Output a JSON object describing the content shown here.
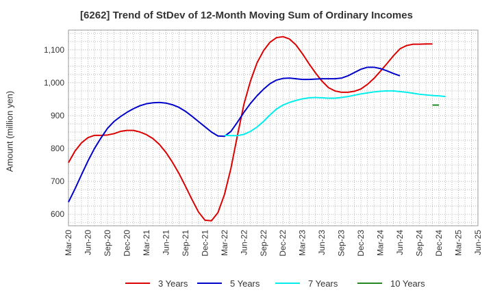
{
  "chart_data": {
    "type": "line",
    "title": "[6262]  Trend of StDev of 12-Month Moving Sum of Ordinary Incomes",
    "xlabel": "",
    "ylabel": "Amount (million yen)",
    "ylim": [
      565,
      1160
    ],
    "y_ticks": [
      600,
      700,
      800,
      900,
      1000,
      1100
    ],
    "y_tick_labels": [
      "600",
      "700",
      "800",
      "900",
      "1,000",
      "1,100"
    ],
    "x_tick_labels": [
      "Mar-20",
      "Jun-20",
      "Sep-20",
      "Dec-20",
      "Mar-21",
      "Jun-21",
      "Sep-21",
      "Dec-21",
      "Mar-22",
      "Jun-22",
      "Sep-22",
      "Dec-22",
      "Mar-23",
      "Jun-23",
      "Sep-23",
      "Dec-23",
      "Mar-24",
      "Jun-24",
      "Sep-24",
      "Dec-24",
      "Mar-25",
      "Jun-25"
    ],
    "grid": true,
    "series": [
      {
        "name": "3 Years",
        "color": "#dd0000",
        "start_index": 0,
        "values": [
          757,
          792,
          817,
          833,
          840,
          840,
          841,
          845,
          852,
          855,
          855,
          850,
          842,
          830,
          812,
          788,
          758,
          724,
          685,
          645,
          607,
          582,
          580,
          605,
          660,
          740,
          840,
          935,
          1005,
          1060,
          1097,
          1123,
          1137,
          1140,
          1133,
          1115,
          1088,
          1058,
          1030,
          1005,
          985,
          975,
          971,
          971,
          974,
          981,
          995,
          1013,
          1035,
          1058,
          1082,
          1103,
          1113,
          1117,
          1117,
          1118,
          1118
        ]
      },
      {
        "name": "5 Years",
        "color": "#0000cc",
        "start_index": 0,
        "values": [
          637,
          677,
          720,
          762,
          800,
          832,
          861,
          882,
          897,
          910,
          921,
          930,
          936,
          939,
          940,
          938,
          933,
          925,
          913,
          898,
          882,
          866,
          850,
          838,
          837,
          852,
          880,
          910,
          937,
          960,
          980,
          997,
          1008,
          1013,
          1014,
          1012,
          1010,
          1010,
          1011,
          1012,
          1012,
          1012,
          1014,
          1021,
          1031,
          1041,
          1047,
          1047,
          1043,
          1036,
          1028,
          1021
        ]
      },
      {
        "name": "7 Years",
        "color": "#00eeee",
        "start_index": 24,
        "values": [
          840,
          839,
          839,
          843,
          852,
          865,
          882,
          902,
          920,
          932,
          940,
          946,
          951,
          954,
          955,
          954,
          953,
          953,
          955,
          958,
          962,
          966,
          969,
          972,
          974,
          975,
          975,
          973,
          971,
          968,
          965,
          963,
          961,
          960,
          958
        ]
      },
      {
        "name": "10 Years",
        "color": "#228822",
        "start_index": 56,
        "values": [
          932,
          932
        ]
      }
    ]
  }
}
